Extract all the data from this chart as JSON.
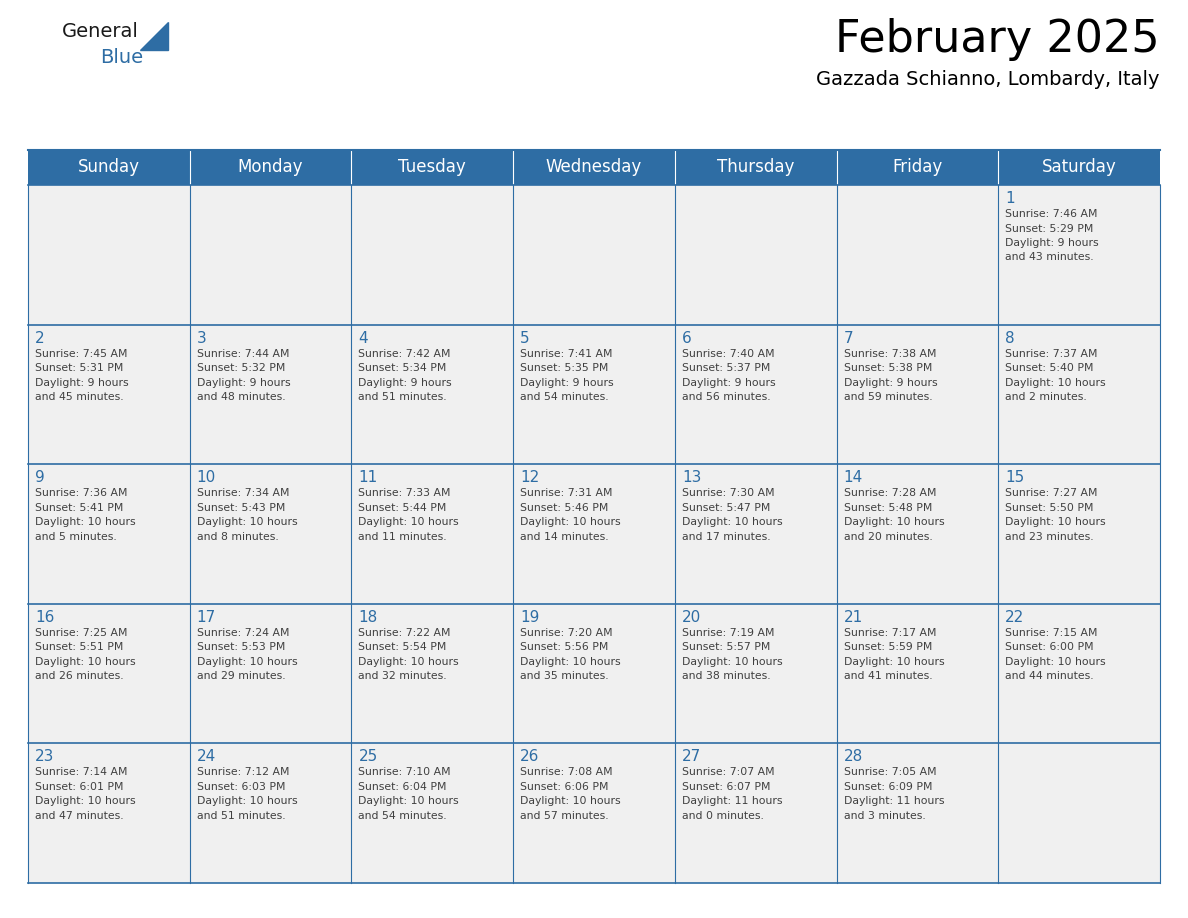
{
  "title": "February 2025",
  "subtitle": "Gazzada Schianno, Lombardy, Italy",
  "header_bg": "#2E6DA4",
  "header_text_color": "#FFFFFF",
  "cell_bg_light": "#F0F0F0",
  "cell_bg_white": "#FFFFFF",
  "day_number_color": "#2E6DA4",
  "text_color": "#404040",
  "border_color": "#2E6DA4",
  "days_of_week": [
    "Sunday",
    "Monday",
    "Tuesday",
    "Wednesday",
    "Thursday",
    "Friday",
    "Saturday"
  ],
  "weeks": [
    [
      {
        "day": null,
        "sunrise": null,
        "sunset": null,
        "daylight": null
      },
      {
        "day": null,
        "sunrise": null,
        "sunset": null,
        "daylight": null
      },
      {
        "day": null,
        "sunrise": null,
        "sunset": null,
        "daylight": null
      },
      {
        "day": null,
        "sunrise": null,
        "sunset": null,
        "daylight": null
      },
      {
        "day": null,
        "sunrise": null,
        "sunset": null,
        "daylight": null
      },
      {
        "day": null,
        "sunrise": null,
        "sunset": null,
        "daylight": null
      },
      {
        "day": 1,
        "sunrise": "7:46 AM",
        "sunset": "5:29 PM",
        "daylight1": "9 hours",
        "daylight2": "and 43 minutes."
      }
    ],
    [
      {
        "day": 2,
        "sunrise": "7:45 AM",
        "sunset": "5:31 PM",
        "daylight1": "9 hours",
        "daylight2": "and 45 minutes."
      },
      {
        "day": 3,
        "sunrise": "7:44 AM",
        "sunset": "5:32 PM",
        "daylight1": "9 hours",
        "daylight2": "and 48 minutes."
      },
      {
        "day": 4,
        "sunrise": "7:42 AM",
        "sunset": "5:34 PM",
        "daylight1": "9 hours",
        "daylight2": "and 51 minutes."
      },
      {
        "day": 5,
        "sunrise": "7:41 AM",
        "sunset": "5:35 PM",
        "daylight1": "9 hours",
        "daylight2": "and 54 minutes."
      },
      {
        "day": 6,
        "sunrise": "7:40 AM",
        "sunset": "5:37 PM",
        "daylight1": "9 hours",
        "daylight2": "and 56 minutes."
      },
      {
        "day": 7,
        "sunrise": "7:38 AM",
        "sunset": "5:38 PM",
        "daylight1": "9 hours",
        "daylight2": "and 59 minutes."
      },
      {
        "day": 8,
        "sunrise": "7:37 AM",
        "sunset": "5:40 PM",
        "daylight1": "10 hours",
        "daylight2": "and 2 minutes."
      }
    ],
    [
      {
        "day": 9,
        "sunrise": "7:36 AM",
        "sunset": "5:41 PM",
        "daylight1": "10 hours",
        "daylight2": "and 5 minutes."
      },
      {
        "day": 10,
        "sunrise": "7:34 AM",
        "sunset": "5:43 PM",
        "daylight1": "10 hours",
        "daylight2": "and 8 minutes."
      },
      {
        "day": 11,
        "sunrise": "7:33 AM",
        "sunset": "5:44 PM",
        "daylight1": "10 hours",
        "daylight2": "and 11 minutes."
      },
      {
        "day": 12,
        "sunrise": "7:31 AM",
        "sunset": "5:46 PM",
        "daylight1": "10 hours",
        "daylight2": "and 14 minutes."
      },
      {
        "day": 13,
        "sunrise": "7:30 AM",
        "sunset": "5:47 PM",
        "daylight1": "10 hours",
        "daylight2": "and 17 minutes."
      },
      {
        "day": 14,
        "sunrise": "7:28 AM",
        "sunset": "5:48 PM",
        "daylight1": "10 hours",
        "daylight2": "and 20 minutes."
      },
      {
        "day": 15,
        "sunrise": "7:27 AM",
        "sunset": "5:50 PM",
        "daylight1": "10 hours",
        "daylight2": "and 23 minutes."
      }
    ],
    [
      {
        "day": 16,
        "sunrise": "7:25 AM",
        "sunset": "5:51 PM",
        "daylight1": "10 hours",
        "daylight2": "and 26 minutes."
      },
      {
        "day": 17,
        "sunrise": "7:24 AM",
        "sunset": "5:53 PM",
        "daylight1": "10 hours",
        "daylight2": "and 29 minutes."
      },
      {
        "day": 18,
        "sunrise": "7:22 AM",
        "sunset": "5:54 PM",
        "daylight1": "10 hours",
        "daylight2": "and 32 minutes."
      },
      {
        "day": 19,
        "sunrise": "7:20 AM",
        "sunset": "5:56 PM",
        "daylight1": "10 hours",
        "daylight2": "and 35 minutes."
      },
      {
        "day": 20,
        "sunrise": "7:19 AM",
        "sunset": "5:57 PM",
        "daylight1": "10 hours",
        "daylight2": "and 38 minutes."
      },
      {
        "day": 21,
        "sunrise": "7:17 AM",
        "sunset": "5:59 PM",
        "daylight1": "10 hours",
        "daylight2": "and 41 minutes."
      },
      {
        "day": 22,
        "sunrise": "7:15 AM",
        "sunset": "6:00 PM",
        "daylight1": "10 hours",
        "daylight2": "and 44 minutes."
      }
    ],
    [
      {
        "day": 23,
        "sunrise": "7:14 AM",
        "sunset": "6:01 PM",
        "daylight1": "10 hours",
        "daylight2": "and 47 minutes."
      },
      {
        "day": 24,
        "sunrise": "7:12 AM",
        "sunset": "6:03 PM",
        "daylight1": "10 hours",
        "daylight2": "and 51 minutes."
      },
      {
        "day": 25,
        "sunrise": "7:10 AM",
        "sunset": "6:04 PM",
        "daylight1": "10 hours",
        "daylight2": "and 54 minutes."
      },
      {
        "day": 26,
        "sunrise": "7:08 AM",
        "sunset": "6:06 PM",
        "daylight1": "10 hours",
        "daylight2": "and 57 minutes."
      },
      {
        "day": 27,
        "sunrise": "7:07 AM",
        "sunset": "6:07 PM",
        "daylight1": "11 hours",
        "daylight2": "and 0 minutes."
      },
      {
        "day": 28,
        "sunrise": "7:05 AM",
        "sunset": "6:09 PM",
        "daylight1": "11 hours",
        "daylight2": "and 3 minutes."
      },
      {
        "day": null,
        "sunrise": null,
        "sunset": null,
        "daylight1": null,
        "daylight2": null
      }
    ]
  ],
  "title_fontsize": 32,
  "subtitle_fontsize": 14,
  "header_fontsize": 12,
  "day_number_fontsize": 11,
  "cell_text_fontsize": 7.8
}
